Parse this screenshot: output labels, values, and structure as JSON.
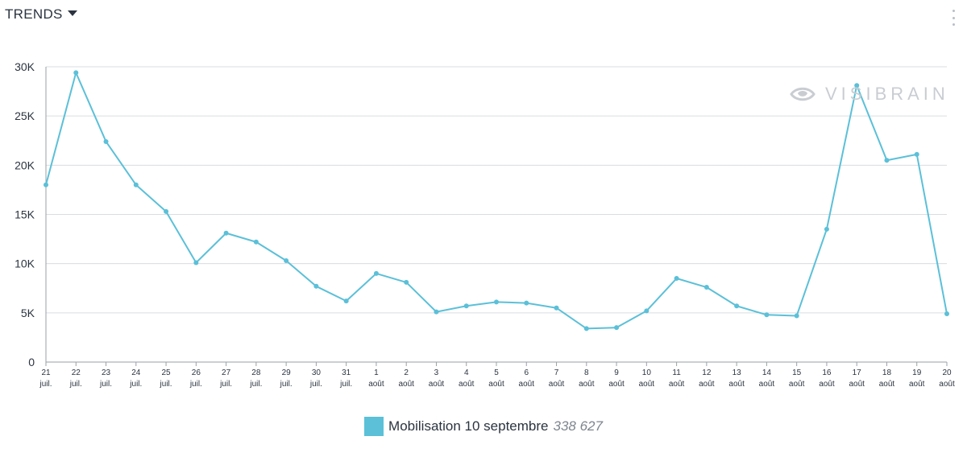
{
  "header": {
    "title": "TRENDS"
  },
  "watermark": {
    "text": "VISIBRAIN"
  },
  "colors": {
    "series": "#5bc0d8",
    "grid": "#d9dce0",
    "axis": "#9aa0a6",
    "text": "#2b3440",
    "watermark": "#c9cdd2"
  },
  "legend": {
    "name": "Mobilisation 10 septembre",
    "total": "338 627"
  },
  "chart_data": {
    "type": "line",
    "title": "",
    "xlabel": "",
    "ylabel": "",
    "ylim": [
      0,
      30000
    ],
    "yticks": [
      0,
      5000,
      10000,
      15000,
      20000,
      25000,
      30000
    ],
    "ytick_labels": [
      "0",
      "5K",
      "10K",
      "15K",
      "20K",
      "25K",
      "30K"
    ],
    "grid": true,
    "legend_position": "bottom",
    "categories": [
      {
        "day": "21",
        "month": "juil."
      },
      {
        "day": "22",
        "month": "juil."
      },
      {
        "day": "23",
        "month": "juil."
      },
      {
        "day": "24",
        "month": "juil."
      },
      {
        "day": "25",
        "month": "juil."
      },
      {
        "day": "26",
        "month": "juil."
      },
      {
        "day": "27",
        "month": "juil."
      },
      {
        "day": "28",
        "month": "juil."
      },
      {
        "day": "29",
        "month": "juil."
      },
      {
        "day": "30",
        "month": "juil."
      },
      {
        "day": "31",
        "month": "juil."
      },
      {
        "day": "1",
        "month": "août"
      },
      {
        "day": "2",
        "month": "août"
      },
      {
        "day": "3",
        "month": "août"
      },
      {
        "day": "4",
        "month": "août"
      },
      {
        "day": "5",
        "month": "août"
      },
      {
        "day": "6",
        "month": "août"
      },
      {
        "day": "7",
        "month": "août"
      },
      {
        "day": "8",
        "month": "août"
      },
      {
        "day": "9",
        "month": "août"
      },
      {
        "day": "10",
        "month": "août"
      },
      {
        "day": "11",
        "month": "août"
      },
      {
        "day": "12",
        "month": "août"
      },
      {
        "day": "13",
        "month": "août"
      },
      {
        "day": "14",
        "month": "août"
      },
      {
        "day": "15",
        "month": "août"
      },
      {
        "day": "16",
        "month": "août"
      },
      {
        "day": "17",
        "month": "août"
      },
      {
        "day": "18",
        "month": "août"
      },
      {
        "day": "19",
        "month": "août"
      },
      {
        "day": "20",
        "month": "août"
      }
    ],
    "series": [
      {
        "name": "Mobilisation 10 septembre",
        "color": "#5bc0d8",
        "values": [
          18000,
          29400,
          22400,
          18000,
          15300,
          10100,
          13100,
          12200,
          10300,
          7700,
          6200,
          9000,
          8100,
          5100,
          5700,
          6100,
          6000,
          5500,
          3400,
          3500,
          5200,
          8500,
          7600,
          5700,
          4800,
          4700,
          13500,
          28100,
          20500,
          21100,
          4900
        ]
      }
    ]
  }
}
